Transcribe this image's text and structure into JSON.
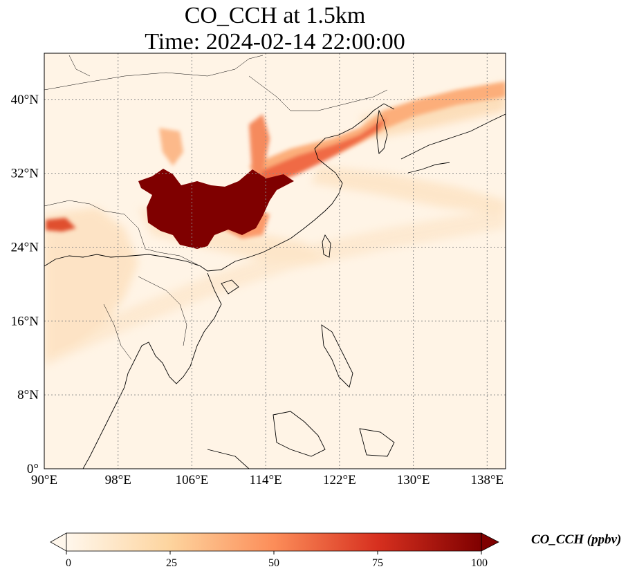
{
  "title": {
    "line1": "CO_CCH at 1.5km",
    "line2": "Time: 2024-02-14 22:00:00"
  },
  "map": {
    "projection": "PlateCarree",
    "extent": {
      "lon": [
        90,
        140
      ],
      "lat": [
        0,
        45
      ]
    },
    "gridlines": "dotted gray",
    "lon_ticks": [
      "90°E",
      "98°E",
      "106°E",
      "114°E",
      "122°E",
      "130°E",
      "138°E"
    ],
    "lat_ticks": [
      "0°",
      "8°N",
      "16°N",
      "24°N",
      "32°N",
      "40°N"
    ],
    "field": "CO_CCH",
    "features": [
      "coastlines",
      "country borders"
    ]
  },
  "colorbar": {
    "label": "CO_CCH (ppbv)",
    "colormap": "OrRd",
    "range": [
      0,
      100
    ],
    "extend": "both",
    "ticks": [
      "0",
      "25",
      "50",
      "75",
      "100"
    ],
    "colors": [
      "#fff7ec",
      "#fdd49e",
      "#fc8d59",
      "#d7301f",
      "#7f0000"
    ]
  }
}
